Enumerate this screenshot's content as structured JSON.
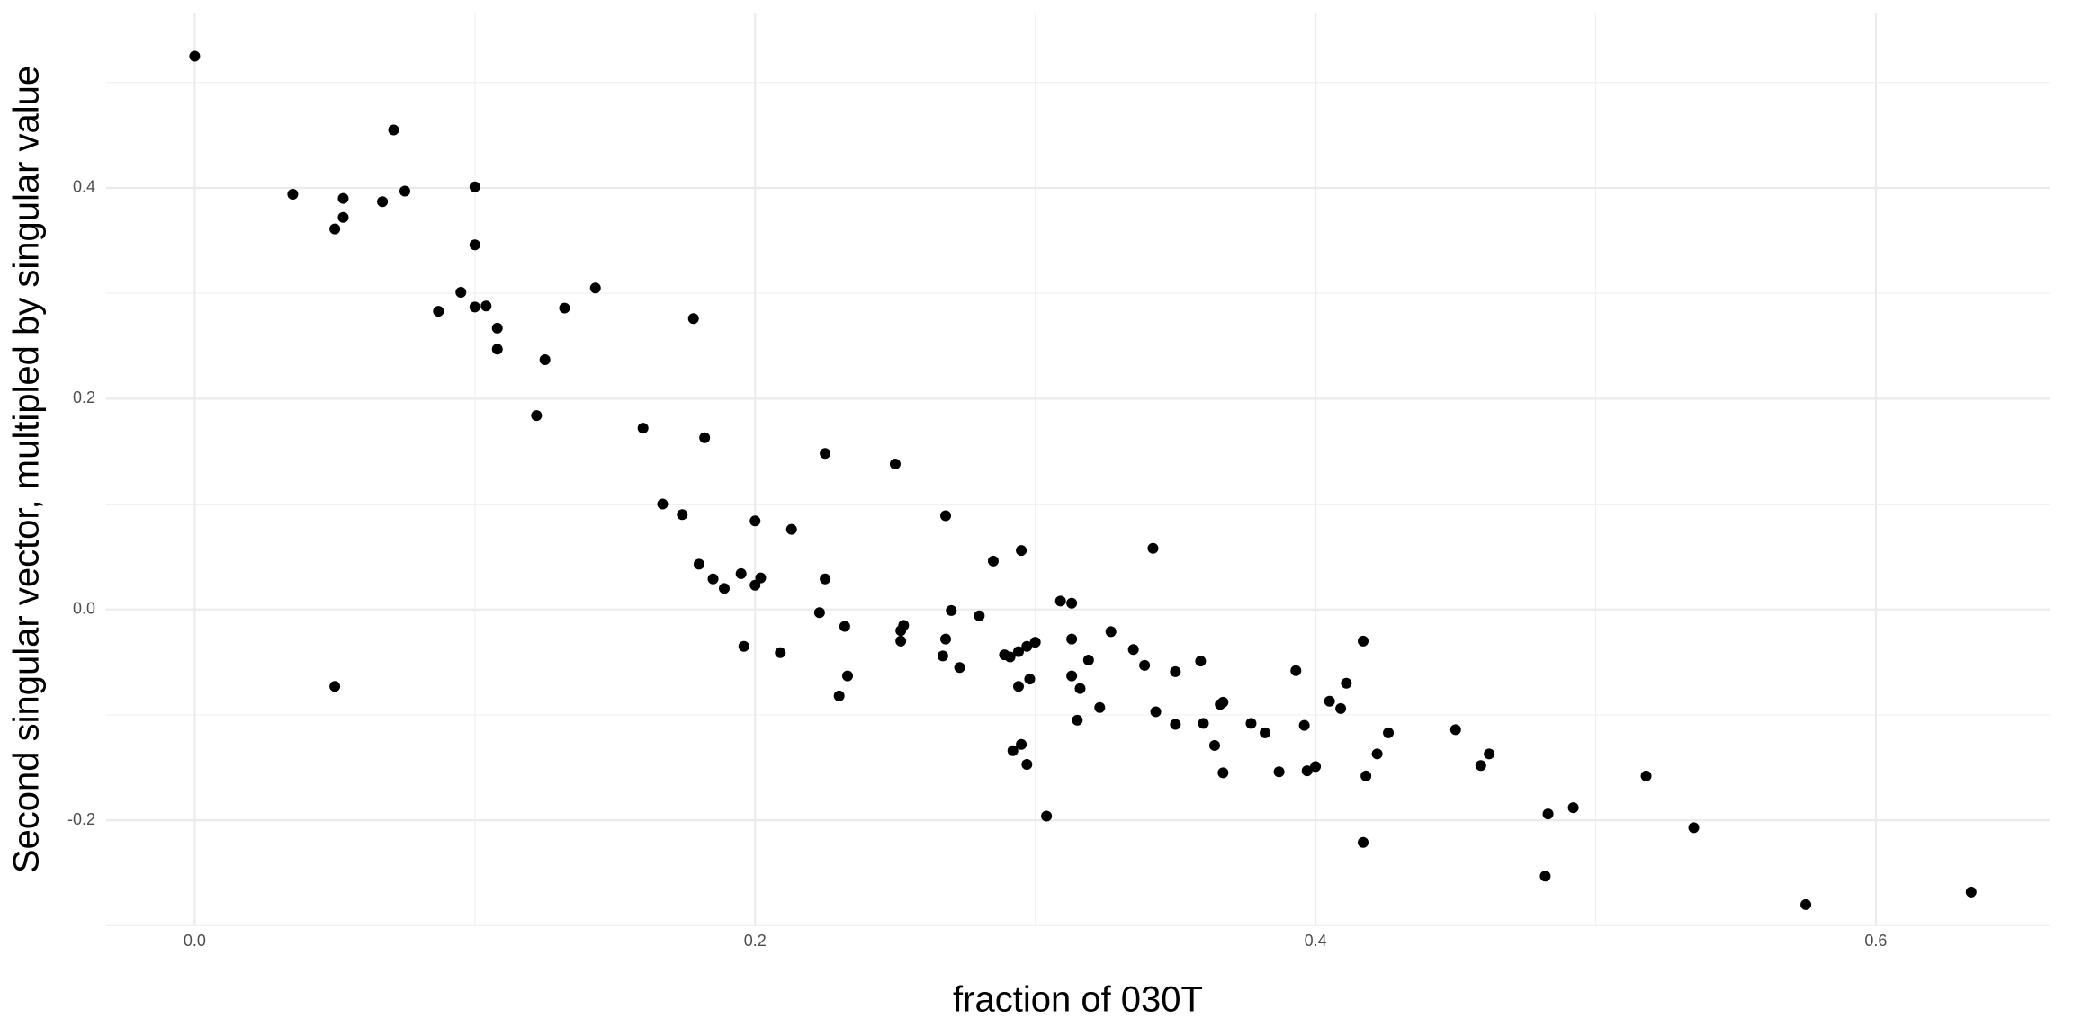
{
  "chart_data": {
    "type": "scatter",
    "x_label": "fraction of 030T",
    "y_label": "Second singular vector, multipled by singular value",
    "color": "#000000",
    "xlim": [
      -0.0316,
      0.662
    ],
    "ylim": [
      -0.2997,
      0.5655
    ],
    "xticks": [
      {
        "value": 0,
        "label": "0.0"
      },
      0.2,
      0.4,
      0.6
    ],
    "yticks": [
      -0.2,
      {
        "value": 0,
        "label": "0.0"
      },
      0.2,
      0.4
    ],
    "minor_xticks": [
      0.1,
      0.3,
      0.5
    ],
    "minor_yticks": [
      -0.3,
      -0.1,
      0.1,
      0.3,
      0.5
    ],
    "grid": true,
    "x": [
      0,
      0.035,
      0.05,
      0.053,
      0.053,
      0.067,
      0.071,
      0.075,
      0.1,
      0.1,
      0.095,
      0.087,
      0.1,
      0.104,
      0.108,
      0.108,
      0.125,
      0.132,
      0.143,
      0.122,
      0.05,
      0.178,
      0.16,
      0.182,
      0.167,
      0.174,
      0.18,
      0.185,
      0.189,
      0.195,
      0.196,
      0.2,
      0.2,
      0.202,
      0.209,
      0.213,
      0.223,
      0.225,
      0.225,
      0.23,
      0.232,
      0.233,
      0.25,
      0.252,
      0.252,
      0.253,
      0.268,
      0.267,
      0.268,
      0.27,
      0.273,
      0.28,
      0.285,
      0.289,
      0.291,
      0.292,
      0.294,
      0.294,
      0.295,
      0.295,
      0.297,
      0.297,
      0.298,
      0.3,
      0.304,
      0.309,
      0.313,
      0.313,
      0.313,
      0.315,
      0.316,
      0.319,
      0.323,
      0.327,
      0.335,
      0.339,
      0.342,
      0.343,
      0.35,
      0.35,
      0.359,
      0.36,
      0.364,
      0.366,
      0.367,
      0.367,
      0.377,
      0.382,
      0.387,
      0.393,
      0.396,
      0.397,
      0.4,
      0.405,
      0.409,
      0.411,
      0.417,
      0.417,
      0.418,
      0.422,
      0.426,
      0.45,
      0.459,
      0.462,
      0.482,
      0.483,
      0.492,
      0.518,
      0.535,
      0.575,
      0.634
    ],
    "values": [
      0.525,
      0.394,
      0.361,
      0.39,
      0.372,
      0.387,
      0.455,
      0.397,
      0.401,
      0.346,
      0.301,
      0.283,
      0.287,
      0.288,
      0.267,
      0.247,
      0.237,
      0.286,
      0.305,
      0.184,
      -0.073,
      0.276,
      0.172,
      0.163,
      0.1,
      0.09,
      0.043,
      0.029,
      0.02,
      0.034,
      -0.035,
      0.084,
      0.023,
      0.03,
      -0.041,
      0.076,
      -0.003,
      0.148,
      0.029,
      -0.082,
      -0.016,
      -0.063,
      0.138,
      -0.03,
      -0.02,
      -0.015,
      0.089,
      -0.044,
      -0.028,
      -0.001,
      -0.055,
      -0.006,
      0.046,
      -0.043,
      -0.045,
      -0.134,
      -0.04,
      -0.073,
      0.056,
      -0.128,
      -0.035,
      -0.147,
      -0.066,
      -0.031,
      -0.196,
      0.008,
      -0.028,
      0.006,
      -0.063,
      -0.105,
      -0.075,
      -0.048,
      -0.093,
      -0.021,
      -0.038,
      -0.053,
      0.058,
      -0.097,
      -0.109,
      -0.059,
      -0.049,
      -0.108,
      -0.129,
      -0.09,
      -0.088,
      -0.155,
      -0.108,
      -0.117,
      -0.154,
      -0.058,
      -0.11,
      -0.153,
      -0.149,
      -0.087,
      -0.094,
      -0.07,
      -0.03,
      -0.221,
      -0.158,
      -0.137,
      -0.117,
      -0.114,
      -0.148,
      -0.137,
      -0.253,
      -0.194,
      -0.188,
      -0.158,
      -0.207,
      -0.28,
      -0.268
    ]
  }
}
